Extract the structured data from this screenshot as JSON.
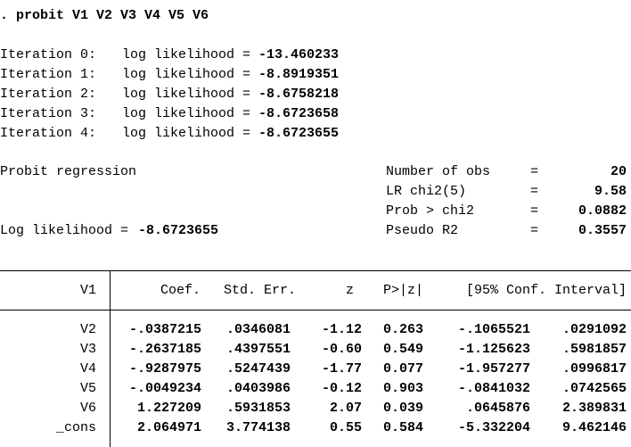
{
  "command": ". probit V1 V2 V3 V4 V5 V6",
  "iterations": [
    {
      "label": "Iteration 0:",
      "text": "log likelihood =",
      "value": "-13.460233"
    },
    {
      "label": "Iteration 1:",
      "text": "log likelihood =",
      "value": "-8.8919351"
    },
    {
      "label": "Iteration 2:",
      "text": "log likelihood =",
      "value": "-8.6758218"
    },
    {
      "label": "Iteration 3:",
      "text": "log likelihood =",
      "value": "-8.6723658"
    },
    {
      "label": "Iteration 4:",
      "text": "log likelihood =",
      "value": "-8.6723655"
    }
  ],
  "model_title": "Probit regression",
  "stats": [
    {
      "label": "Number of obs",
      "eq": "=",
      "value": "20"
    },
    {
      "label": "LR chi2(5)",
      "eq": "=",
      "value": "9.58"
    },
    {
      "label": "Prob > chi2",
      "eq": "=",
      "value": "0.0882"
    },
    {
      "label": "Pseudo R2",
      "eq": "=",
      "value": "0.3557"
    }
  ],
  "log_likelihood": {
    "label": "Log likelihood =",
    "value": "-8.6723655"
  },
  "table": {
    "header": [
      "V1",
      "Coef.",
      "Std. Err.",
      "z",
      "P>|z|",
      "[95% Conf. Interval]"
    ],
    "rows": [
      [
        "V2",
        "-.0387215",
        ".0346081",
        "-1.12",
        "0.263",
        "-.1065521",
        ".0291092"
      ],
      [
        "V3",
        "-.2637185",
        ".4397551",
        "-0.60",
        "0.549",
        "-1.125623",
        ".5981857"
      ],
      [
        "V4",
        "-.9287975",
        ".5247439",
        "-1.77",
        "0.077",
        "-1.957277",
        ".0996817"
      ],
      [
        "V5",
        "-.0049234",
        ".0403986",
        "-0.12",
        "0.903",
        "-.0841032",
        ".0742565"
      ],
      [
        "V6",
        "1.227209",
        ".5931853",
        "2.07",
        "0.039",
        ".0645876",
        "2.389831"
      ],
      [
        "_cons",
        "2.064971",
        "3.774138",
        "0.55",
        "0.584",
        "-5.332204",
        "9.462146"
      ]
    ]
  }
}
